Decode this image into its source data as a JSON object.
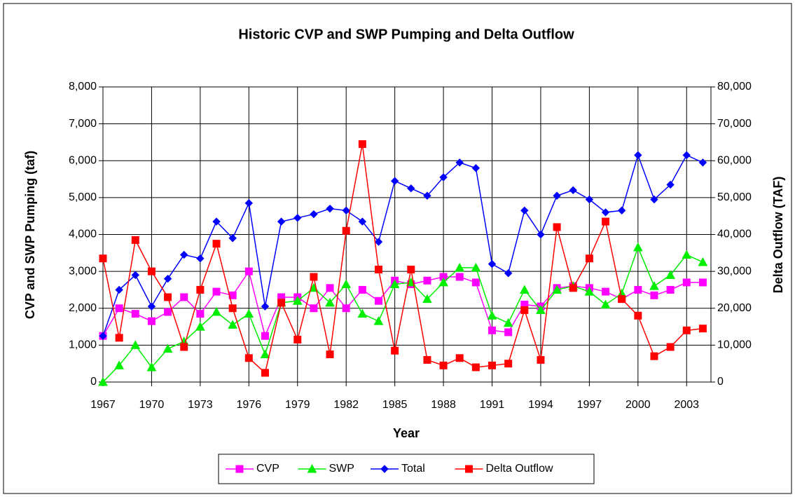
{
  "chart_data": {
    "type": "line",
    "title": "Historic CVP and SWP Pumping and Delta Outflow",
    "x_label": "Year",
    "y_label": "CVP and SWP Pumping (taf)",
    "y2_label": "Delta Outflow (TAF)",
    "x": [
      1967,
      1968,
      1969,
      1970,
      1971,
      1972,
      1973,
      1974,
      1975,
      1976,
      1977,
      1978,
      1979,
      1980,
      1981,
      1982,
      1983,
      1984,
      1985,
      1986,
      1987,
      1988,
      1989,
      1990,
      1991,
      1992,
      1993,
      1994,
      1995,
      1996,
      1997,
      1998,
      1999,
      2000,
      2001,
      2002,
      2003,
      2004
    ],
    "xlim": [
      1967,
      2004.5
    ],
    "xticks": [
      1967,
      1970,
      1973,
      1976,
      1979,
      1982,
      1985,
      1988,
      1991,
      1994,
      1997,
      2000,
      2003
    ],
    "ylim": [
      0,
      8000
    ],
    "yticks": [
      0,
      {
        "value": 1000,
        "label": "1,000"
      },
      {
        "value": 2000,
        "label": "2,000"
      },
      {
        "value": 3000,
        "label": "3,000"
      },
      {
        "value": 4000,
        "label": "4,000"
      },
      {
        "value": 5000,
        "label": "5,000"
      },
      {
        "value": 6000,
        "label": "6,000"
      },
      {
        "value": 7000,
        "label": "7,000"
      },
      {
        "value": 8000,
        "label": "8,000"
      }
    ],
    "y2lim": [
      0,
      80000
    ],
    "y2ticks": [
      0,
      {
        "value": 10000,
        "label": "10,000"
      },
      {
        "value": 20000,
        "label": "20,000"
      },
      {
        "value": 30000,
        "label": "30,000"
      },
      {
        "value": 40000,
        "label": "40,000"
      },
      {
        "value": 50000,
        "label": "50,000"
      },
      {
        "value": 60000,
        "label": "60,000"
      },
      {
        "value": 70000,
        "label": "70,000"
      },
      {
        "value": 80000,
        "label": "80,000"
      }
    ],
    "grid": true,
    "legend": "bottom",
    "series": [
      {
        "name": "CVP",
        "color": "#ff00ff",
        "marker": "square",
        "values": [
          1250,
          2000,
          1850,
          1650,
          1900,
          2300,
          1850,
          2450,
          2350,
          3000,
          1250,
          2300,
          2300,
          2000,
          2550,
          2000,
          2500,
          2200,
          2750,
          2650,
          2750,
          2850,
          2850,
          2700,
          1400,
          1350,
          2100,
          2050,
          2550,
          2600,
          2550,
          2450,
          2250,
          2500,
          2350,
          2500,
          2700,
          2700
        ]
      },
      {
        "name": "SWP",
        "color": "#00ee00",
        "marker": "triangle",
        "values": [
          0,
          450,
          1000,
          400,
          900,
          1100,
          1500,
          1900,
          1550,
          1850,
          750,
          2150,
          2200,
          2550,
          2150,
          2650,
          1850,
          1650,
          2650,
          2700,
          2250,
          2700,
          3100,
          3100,
          1800,
          1600,
          2500,
          1950,
          2500,
          2600,
          2450,
          2100,
          2400,
          3650,
          2600,
          2900,
          3450,
          3250
        ]
      },
      {
        "name": "Total",
        "color": "#0000ff",
        "marker": "diamond",
        "values": [
          1250,
          2500,
          2900,
          2050,
          2800,
          3450,
          3350,
          4350,
          3900,
          4850,
          2050,
          4350,
          4450,
          4550,
          4700,
          4650,
          4350,
          3800,
          5450,
          5250,
          5050,
          5550,
          5950,
          5800,
          3200,
          2950,
          4650,
          4000,
          5050,
          5200,
          4950,
          4600,
          4650,
          6150,
          4950,
          5350,
          6150,
          5950
        ]
      },
      {
        "name": "Delta Outflow",
        "color": "#ff0000",
        "marker": "square",
        "axis": "y2",
        "values": [
          33500,
          12000,
          38500,
          30000,
          23000,
          9500,
          25000,
          37500,
          20000,
          6500,
          2500,
          21500,
          11500,
          28500,
          7500,
          41000,
          64500,
          30500,
          8500,
          30500,
          6000,
          4500,
          6500,
          4000,
          4500,
          5000,
          19500,
          6000,
          42000,
          25500,
          33500,
          43500,
          22500,
          18000,
          7000,
          9500,
          14000,
          14500
        ]
      }
    ]
  }
}
